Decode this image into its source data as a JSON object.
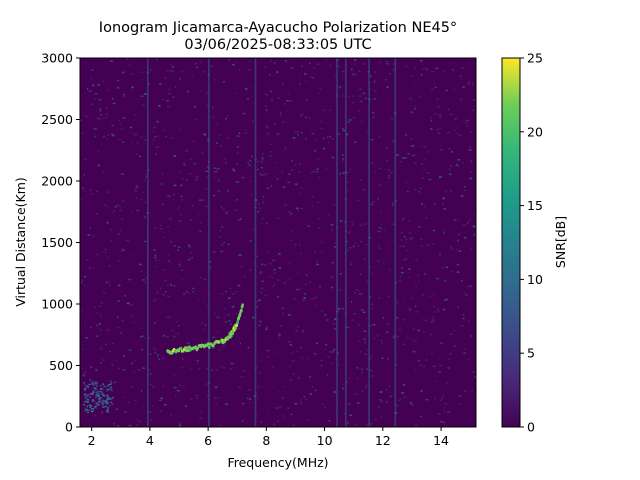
{
  "chart_data": {
    "type": "heatmap",
    "title": "Ionogram Jicamarca-Ayacucho Polarization NE45°",
    "subtitle": "03/06/2025-08:33:05 UTC",
    "xlabel": "Frequency(MHz)",
    "ylabel": "Virtual Distance(Km)",
    "xlim": [
      1.6,
      15.2
    ],
    "ylim": [
      0,
      3000
    ],
    "xticks": [
      2,
      4,
      6,
      8,
      10,
      12,
      14
    ],
    "xtick_labels": [
      "2",
      "4",
      "6",
      "8",
      "10",
      "12",
      "14"
    ],
    "yticks": [
      0,
      500,
      1000,
      1500,
      2000,
      2500,
      3000
    ],
    "ytick_labels": [
      "0",
      "500",
      "1000",
      "1500",
      "2000",
      "2500",
      "3000"
    ],
    "colorbar": {
      "label": "SNR[dB]",
      "range": [
        0,
        25
      ],
      "ticks": [
        0,
        5,
        10,
        15,
        20,
        25
      ],
      "tick_labels": [
        "0",
        "5",
        "10",
        "15",
        "20",
        "25"
      ],
      "colormap": "viridis"
    },
    "background_snr_db": 1,
    "echo_trace": {
      "description": "F-layer echo",
      "points": [
        {
          "freq_mhz": 4.6,
          "dist_km": 610
        },
        {
          "freq_mhz": 5.0,
          "dist_km": 630
        },
        {
          "freq_mhz": 5.5,
          "dist_km": 645
        },
        {
          "freq_mhz": 6.0,
          "dist_km": 665
        },
        {
          "freq_mhz": 6.5,
          "dist_km": 700
        },
        {
          "freq_mhz": 6.8,
          "dist_km": 760
        },
        {
          "freq_mhz": 7.0,
          "dist_km": 850
        },
        {
          "freq_mhz": 7.2,
          "dist_km": 1000
        }
      ],
      "snr_db": 24
    },
    "interference_bands_mhz": [
      3.9,
      6.0,
      7.6,
      10.4,
      10.7,
      11.5,
      12.4
    ]
  }
}
